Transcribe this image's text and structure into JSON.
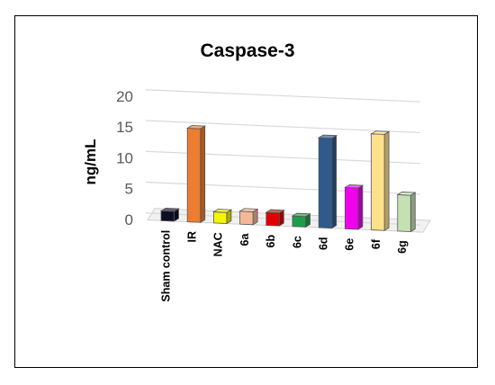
{
  "chart_data": {
    "type": "bar",
    "title": "Caspase-3",
    "ylabel": "ng/mL",
    "xlabel": "",
    "ylim": [
      0,
      20
    ],
    "yticks": [
      "0",
      "5",
      "10",
      "15",
      "20"
    ],
    "grid": true,
    "categories": [
      "Sham control",
      "IR",
      "NAC",
      "6a",
      "6b",
      "6c",
      "6d",
      "6e",
      "6f",
      "6g"
    ],
    "values": [
      1.6,
      15.2,
      1.8,
      2.1,
      2.1,
      1.7,
      14.6,
      6.7,
      15.6,
      5.9
    ],
    "colors": [
      "#0d0d26",
      "#ed7d31",
      "#f5f500",
      "#f4b896",
      "#e00000",
      "#1f9e4a",
      "#2e5a8c",
      "#ee00ee",
      "#ffe08a",
      "#c5e0b4"
    ]
  }
}
